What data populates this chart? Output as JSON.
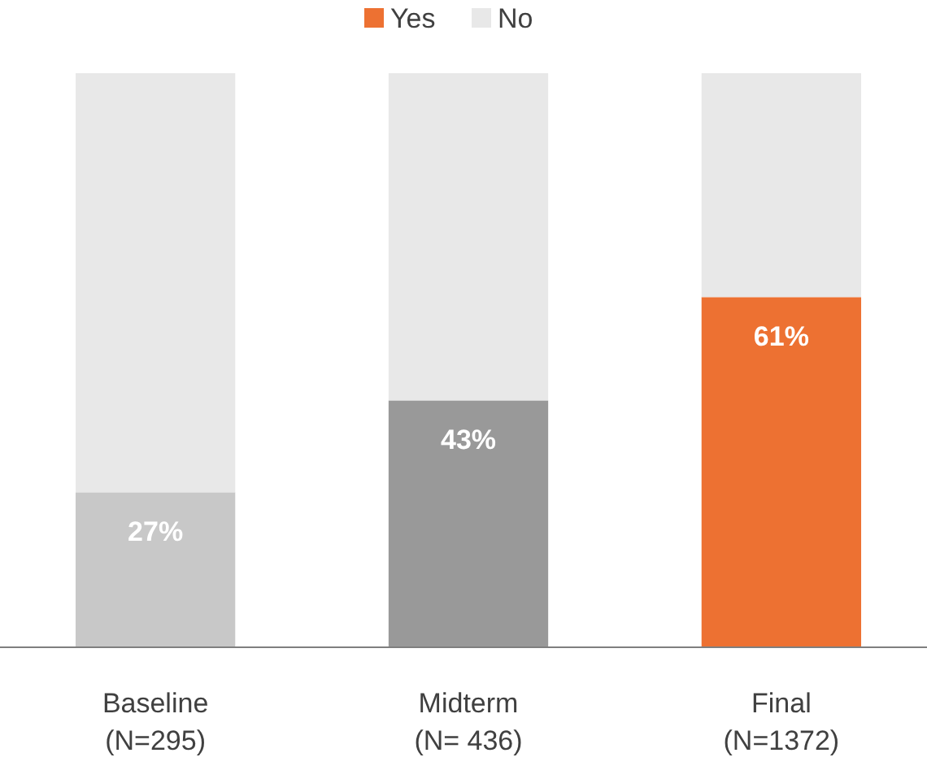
{
  "chart_data": {
    "type": "bar",
    "stacked": true,
    "categories": [
      "Baseline\n(N=295)",
      "Midterm\n(N= 436)",
      "Final\n(N=1372)"
    ],
    "series": [
      {
        "name": "Yes",
        "color": "#ed7132",
        "colors": [
          "#c8c8c8",
          "#999999",
          "#ed7132"
        ],
        "values": [
          27,
          43,
          61
        ],
        "value_labels": [
          "27%",
          "43%",
          "61%"
        ]
      },
      {
        "name": "No",
        "color": "#e8e8e8",
        "values": [
          73,
          57,
          39
        ]
      }
    ],
    "legend": "top"
  }
}
